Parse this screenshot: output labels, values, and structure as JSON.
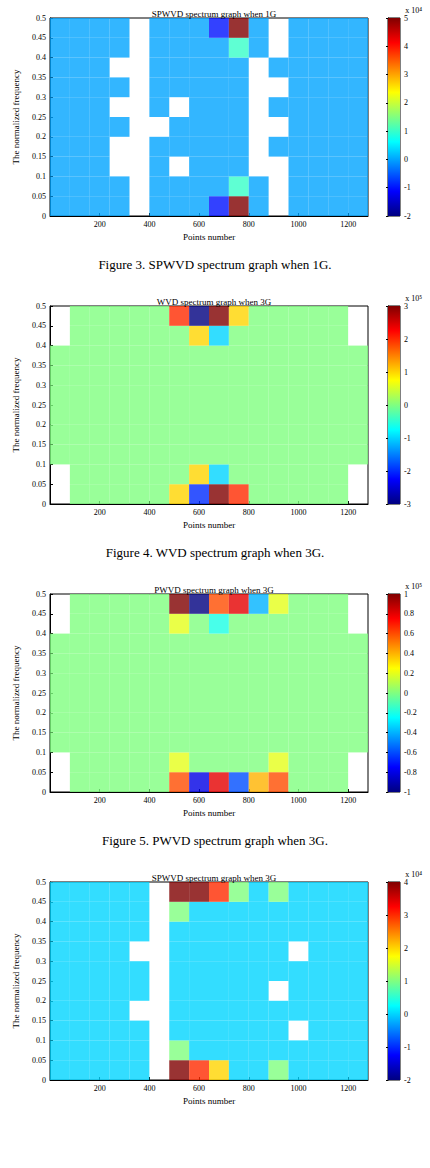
{
  "chart_data": [
    {
      "type": "heatmap",
      "title": "SPWVD spectrum graph when 1G",
      "caption": "Figure 3. SPWVD spectrum graph when 1G.",
      "x_label": "Points number",
      "y_label": "The normalized frequency",
      "xlim": [
        0,
        1280
      ],
      "xticks": [
        200,
        400,
        600,
        800,
        1000,
        1200
      ],
      "ylim": [
        0,
        0.5
      ],
      "yticks": [
        0,
        0.05,
        0.1,
        0.15,
        0.2,
        0.25,
        0.3,
        0.35,
        0.4,
        0.45,
        0.5
      ],
      "grid": false,
      "x_edges": [
        0,
        80,
        160,
        240,
        320,
        400,
        480,
        560,
        640,
        720,
        800,
        880,
        960,
        1040,
        1120,
        1200,
        1280
      ],
      "y_edges": [
        0,
        0.05,
        0.1,
        0.15,
        0.2,
        0.25,
        0.3,
        0.35,
        0.4,
        0.45,
        0.5
      ],
      "cells": [
        [
          0,
          0,
          0,
          0,
          null,
          0,
          0,
          0,
          -1,
          5,
          0,
          null,
          0,
          0,
          0,
          0
        ],
        [
          0,
          0,
          0,
          0,
          null,
          0,
          0,
          0,
          0,
          1,
          0,
          null,
          0,
          0,
          0,
          0
        ],
        [
          0,
          0,
          0,
          null,
          null,
          0,
          null,
          0,
          0,
          0,
          null,
          null,
          0,
          0,
          0,
          0
        ],
        [
          0,
          0,
          0,
          null,
          null,
          0,
          0,
          0,
          0,
          0,
          null,
          0,
          0,
          0,
          0,
          0
        ],
        [
          0,
          0,
          0,
          0,
          null,
          null,
          0,
          0,
          0,
          0,
          null,
          null,
          0,
          0,
          0,
          0
        ],
        [
          0,
          0,
          0,
          null,
          null,
          0,
          null,
          0,
          0,
          0,
          null,
          0,
          0,
          0,
          0,
          0
        ],
        [
          0,
          0,
          0,
          0,
          null,
          0,
          0,
          0,
          0,
          0,
          null,
          null,
          0,
          0,
          0,
          0
        ],
        [
          0,
          0,
          0,
          null,
          null,
          0,
          0,
          0,
          0,
          0,
          null,
          0,
          0,
          0,
          0,
          0
        ],
        [
          0,
          0,
          0,
          0,
          null,
          0,
          0,
          0,
          0,
          1,
          0,
          null,
          0,
          0,
          0,
          0
        ],
        [
          0,
          0,
          0,
          0,
          null,
          0,
          0,
          0,
          -1,
          5,
          0,
          null,
          0,
          0,
          0,
          0
        ]
      ],
      "colorbar_range": [
        -2,
        5
      ],
      "colorbar_ticks": [
        -2,
        -1,
        0,
        1,
        2,
        3,
        4,
        5
      ],
      "colorbar_label": "x 10⁴"
    },
    {
      "type": "heatmap",
      "title": "WVD spectrum graph when 3G",
      "caption": "Figure 4. WVD spectrum graph when 3G.",
      "x_label": "Points number",
      "y_label": "The normalized frequency",
      "xlim": [
        0,
        1280
      ],
      "xticks": [
        200,
        400,
        600,
        800,
        1000,
        1200
      ],
      "ylim": [
        0,
        0.5
      ],
      "yticks": [
        0,
        0.05,
        0.1,
        0.15,
        0.2,
        0.25,
        0.3,
        0.35,
        0.4,
        0.45,
        0.5
      ],
      "grid": false,
      "x_edges": [
        0,
        80,
        160,
        240,
        320,
        400,
        480,
        560,
        640,
        720,
        800,
        880,
        960,
        1040,
        1120,
        1200,
        1280
      ],
      "y_edges": [
        0,
        0.05,
        0.1,
        0.15,
        0.2,
        0.25,
        0.3,
        0.35,
        0.4,
        0.45,
        0.5
      ],
      "cells": [
        [
          null,
          0,
          0,
          0,
          0,
          0,
          1,
          -2,
          3,
          2,
          0,
          0,
          0,
          0,
          0,
          null
        ],
        [
          null,
          0,
          0,
          0,
          0,
          0,
          0,
          1,
          -1,
          0,
          0,
          0,
          0,
          0,
          0,
          null
        ],
        [
          0,
          0,
          0,
          0,
          0,
          0,
          0,
          0,
          0,
          0,
          0,
          0,
          0,
          0,
          0,
          0
        ],
        [
          0,
          0,
          0,
          0,
          0,
          0,
          0,
          0,
          0,
          0,
          0,
          0,
          0,
          0,
          0,
          0
        ],
        [
          0,
          0,
          0,
          0,
          0,
          0,
          0,
          0,
          0,
          0,
          0,
          0,
          0,
          0,
          0,
          0
        ],
        [
          0,
          0,
          0,
          0,
          0,
          0,
          0,
          0,
          0,
          0,
          0,
          0,
          0,
          0,
          0,
          0
        ],
        [
          0,
          0,
          0,
          0,
          0,
          0,
          0,
          0,
          0,
          0,
          0,
          0,
          0,
          0,
          0,
          0
        ],
        [
          0,
          0,
          0,
          0,
          0,
          0,
          0,
          0,
          0,
          0,
          0,
          0,
          0,
          0,
          0,
          0
        ],
        [
          null,
          0,
          0,
          0,
          0,
          0,
          0,
          1,
          -1,
          0,
          0,
          0,
          0,
          0,
          0,
          null
        ],
        [
          null,
          0,
          0,
          0,
          0,
          0,
          2,
          -3,
          3,
          1,
          0,
          0,
          0,
          0,
          0,
          null
        ]
      ],
      "colorbar_range": [
        -3,
        3
      ],
      "colorbar_ticks": [
        -3,
        -2,
        -1,
        0,
        1,
        2,
        3
      ],
      "colorbar_label": "x 10⁵"
    },
    {
      "type": "heatmap",
      "title": "PWVD spectrum graph when 3G",
      "caption": "Figure 5. PWVD spectrum graph when 3G.",
      "x_label": "Points number",
      "y_label": "The normalized frequency",
      "xlim": [
        0,
        1280
      ],
      "xticks": [
        200,
        400,
        600,
        800,
        1000,
        1200
      ],
      "ylim": [
        0,
        0.5
      ],
      "yticks": [
        0,
        0.05,
        0.1,
        0.15,
        0.2,
        0.25,
        0.3,
        0.35,
        0.4,
        0.45,
        0.5
      ],
      "grid": false,
      "x_edges": [
        0,
        80,
        160,
        240,
        320,
        400,
        480,
        560,
        640,
        720,
        800,
        880,
        960,
        1040,
        1120,
        1200,
        1280
      ],
      "y_edges": [
        0,
        0.05,
        0.1,
        0.15,
        0.2,
        0.25,
        0.3,
        0.35,
        0.4,
        0.45,
        0.5
      ],
      "cells": [
        [
          null,
          0,
          0,
          0,
          0,
          0,
          0.6,
          -0.8,
          0.8,
          -0.6,
          0.4,
          0.6,
          0,
          0,
          0,
          null
        ],
        [
          null,
          0,
          0,
          0,
          0,
          0,
          0.2,
          0,
          0,
          0,
          0,
          0.2,
          0,
          0,
          0,
          null
        ],
        [
          0,
          0,
          0,
          0,
          0,
          0,
          0,
          0,
          0,
          0,
          0,
          0,
          0,
          0,
          0,
          0
        ],
        [
          0,
          0,
          0,
          0,
          0,
          0,
          0,
          0,
          0,
          0,
          0,
          0,
          0,
          0,
          0,
          0
        ],
        [
          0,
          0,
          0,
          0,
          0,
          0,
          0,
          0,
          0,
          0,
          0,
          0,
          0,
          0,
          0,
          0
        ],
        [
          0,
          0,
          0,
          0,
          0,
          0,
          0,
          0,
          0,
          0,
          0,
          0,
          0,
          0,
          0,
          0
        ],
        [
          0,
          0,
          0,
          0,
          0,
          0,
          0,
          0,
          0,
          0,
          0,
          0,
          0,
          0,
          0,
          0
        ],
        [
          0,
          0,
          0,
          0,
          0,
          0,
          0,
          0,
          0,
          0,
          0,
          0,
          0,
          0,
          0,
          0
        ],
        [
          null,
          0,
          0,
          0,
          0,
          0,
          0.2,
          0,
          -0.2,
          0,
          0,
          0,
          0,
          0,
          0,
          null
        ],
        [
          null,
          0,
          0,
          0,
          0,
          0,
          1,
          -1,
          0.6,
          0.8,
          -0.4,
          0.2,
          0,
          0,
          0,
          null
        ]
      ],
      "colorbar_range": [
        -1,
        1
      ],
      "colorbar_ticks": [
        -1,
        -0.8,
        -0.6,
        -0.4,
        -0.2,
        0,
        0.2,
        0.4,
        0.6,
        0.8,
        1
      ],
      "colorbar_label": "x 10⁵"
    },
    {
      "type": "heatmap",
      "title": "SPWVD spectrum graph when 3G",
      "x_label": "Points number",
      "y_label": "The normalized frequency",
      "xlim": [
        0,
        1280
      ],
      "xticks": [
        200,
        400,
        600,
        800,
        1000,
        1200
      ],
      "ylim": [
        0,
        0.5
      ],
      "yticks": [
        0,
        0.05,
        0.1,
        0.15,
        0.2,
        0.25,
        0.3,
        0.35,
        0.4,
        0.45,
        0.5
      ],
      "grid": false,
      "x_edges": [
        0,
        80,
        160,
        240,
        320,
        400,
        480,
        560,
        640,
        720,
        800,
        880,
        960,
        1040,
        1120,
        1200,
        1280
      ],
      "y_edges": [
        0,
        0.05,
        0.1,
        0.15,
        0.2,
        0.25,
        0.3,
        0.35,
        0.4,
        0.45,
        0.5
      ],
      "cells": [
        [
          0,
          0,
          0,
          0,
          0,
          null,
          4,
          3,
          2,
          0,
          0,
          1,
          0,
          0,
          0,
          0
        ],
        [
          0,
          0,
          0,
          0,
          0,
          null,
          1,
          0,
          0,
          0,
          0,
          0,
          0,
          0,
          0,
          0
        ],
        [
          0,
          0,
          0,
          0,
          0,
          null,
          0,
          0,
          0,
          0,
          0,
          0,
          null,
          0,
          0,
          0
        ],
        [
          0,
          0,
          0,
          0,
          null,
          null,
          0,
          0,
          0,
          0,
          0,
          0,
          0,
          0,
          0,
          0
        ],
        [
          0,
          0,
          0,
          0,
          0,
          null,
          0,
          0,
          0,
          0,
          0,
          null,
          0,
          0,
          0,
          0
        ],
        [
          0,
          0,
          0,
          0,
          0,
          null,
          0,
          0,
          0,
          0,
          0,
          0,
          0,
          0,
          0,
          0
        ],
        [
          0,
          0,
          0,
          0,
          null,
          null,
          0,
          0,
          0,
          0,
          0,
          0,
          null,
          0,
          0,
          0
        ],
        [
          0,
          0,
          0,
          0,
          0,
          null,
          0,
          0,
          0,
          0,
          0,
          0,
          0,
          0,
          0,
          0
        ],
        [
          0,
          0,
          0,
          0,
          0,
          null,
          1,
          0,
          0,
          0,
          0,
          0,
          0,
          0,
          0,
          0
        ],
        [
          0,
          0,
          0,
          0,
          0,
          null,
          4,
          4,
          3,
          1,
          0,
          1,
          0,
          0,
          0,
          0
        ]
      ],
      "colorbar_range": [
        -2,
        4
      ],
      "colorbar_ticks": [
        -2,
        -1,
        0,
        1,
        2,
        3,
        4
      ],
      "colorbar_label": "x 10⁴"
    }
  ]
}
